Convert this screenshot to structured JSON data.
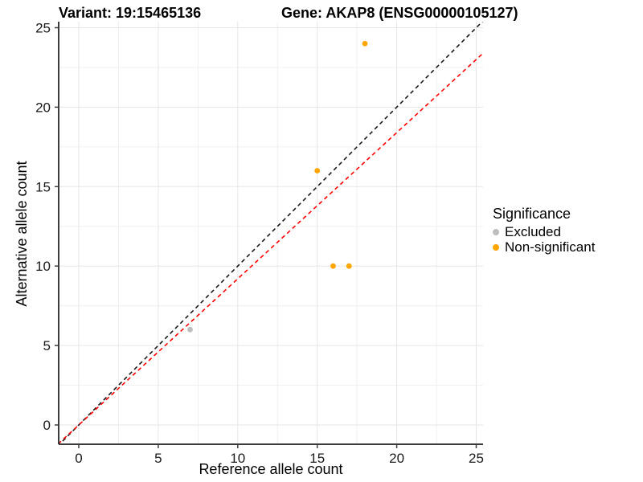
{
  "chart_data": {
    "type": "scatter",
    "title_left": "Variant: 19:15465136",
    "title_right": "Gene: AKAP8 (ENSG00000105127)",
    "xlabel": "Reference allele count",
    "ylabel": "Alternative allele count",
    "xlim": [
      -1.3,
      25.4
    ],
    "ylim": [
      -1.3,
      25.4
    ],
    "major_ticks": [
      0,
      5,
      10,
      15,
      20,
      25
    ],
    "minor_ticks": [
      2.5,
      7.5,
      12.5,
      17.5,
      22.5
    ],
    "grid": "on",
    "legend_position": "right",
    "series": [
      {
        "name": "Excluded",
        "color": "#BDBDBD",
        "points": [
          [
            7,
            6
          ]
        ]
      },
      {
        "name": "Non-significant",
        "color": "#FFA500",
        "points": [
          [
            15,
            16
          ],
          [
            16,
            10
          ],
          [
            17,
            10
          ],
          [
            18,
            24
          ]
        ]
      }
    ],
    "lines": [
      {
        "name": "identity-line",
        "slope": 1.0,
        "intercept": 0.0,
        "color": "#1A1A1A",
        "dashed": true
      },
      {
        "name": "fit-line",
        "slope": 0.92,
        "intercept": 0.0,
        "color": "#FF0000",
        "dashed": true
      }
    ],
    "legend": {
      "title": "Significance",
      "items": [
        {
          "label": "Excluded",
          "color": "#BDBDBD"
        },
        {
          "label": "Non-significant",
          "color": "#FFA500"
        }
      ]
    },
    "colors": {
      "grid_major": "#E6E6E6",
      "grid_minor": "#F0F0F0",
      "axis_line": "#3C3C3C",
      "tick_label": "#1A1A1A"
    }
  }
}
